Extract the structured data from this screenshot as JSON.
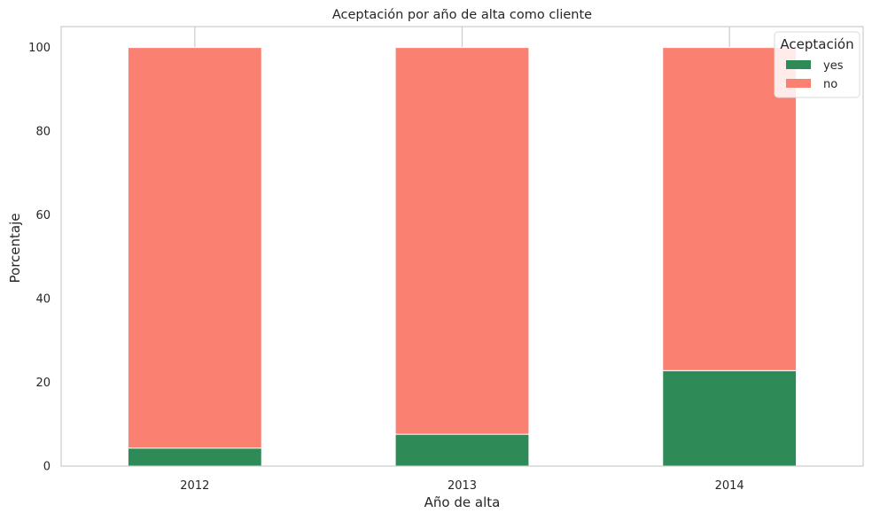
{
  "chart_data": {
    "type": "bar",
    "stacked": true,
    "title": "Aceptación por año de alta como cliente",
    "xlabel": "Año de alta",
    "ylabel": "Porcentaje",
    "categories": [
      "2012",
      "2013",
      "2014"
    ],
    "series": [
      {
        "name": "yes",
        "color": "#2e8b57",
        "values": [
          4.3,
          7.6,
          22.8
        ]
      },
      {
        "name": "no",
        "color": "#fa8072",
        "values": [
          95.7,
          92.4,
          77.2
        ]
      }
    ],
    "ylim": [
      0,
      105
    ],
    "yticks": [
      "0",
      "20",
      "40",
      "60",
      "80",
      "100"
    ],
    "grid": false,
    "legend": {
      "title": "Aceptación",
      "position": "top-right"
    }
  }
}
